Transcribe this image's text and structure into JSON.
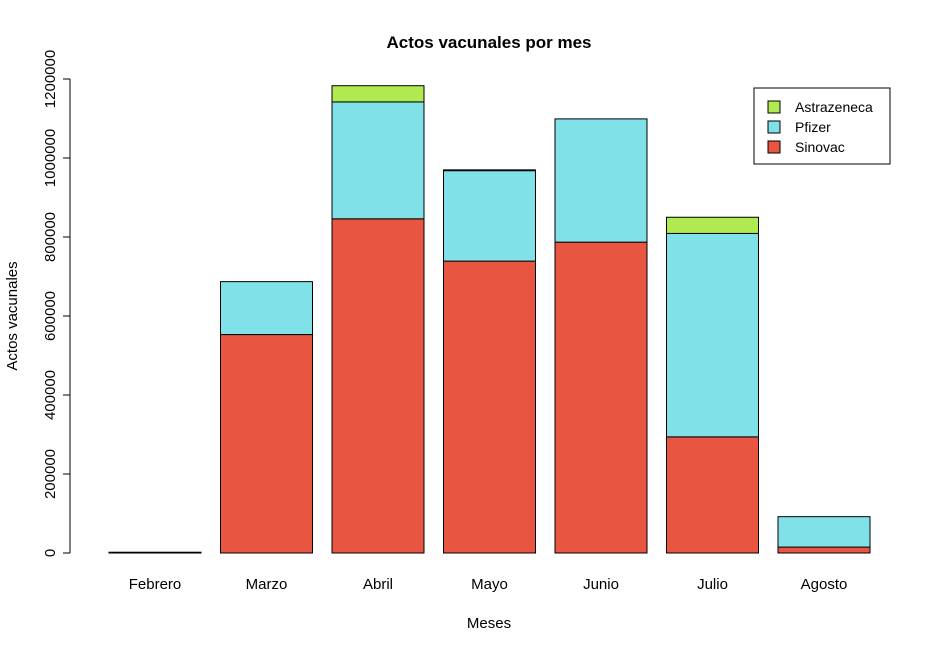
{
  "chart_data": {
    "type": "bar",
    "stacked": true,
    "title": "Actos vacunales por mes",
    "xlabel": "Meses",
    "ylabel": "Actos vacunales",
    "categories": [
      "Febrero",
      "Marzo",
      "Abril",
      "Mayo",
      "Junio",
      "Julio",
      "Agosto"
    ],
    "series": [
      {
        "name": "Sinovac",
        "color": "#E85540",
        "values": [
          2000,
          553000,
          846000,
          739000,
          787000,
          294000,
          15000
        ]
      },
      {
        "name": "Pfizer",
        "color": "#80E1E9",
        "values": [
          0,
          134000,
          296000,
          229000,
          312000,
          515000,
          77000
        ]
      },
      {
        "name": "Astrazeneca",
        "color": "#AEEA50",
        "values": [
          0,
          0,
          41000,
          2000,
          0,
          41000,
          0
        ]
      }
    ],
    "ylim": [
      0,
      1200000
    ],
    "yticks": [
      "0",
      "200000",
      "400000",
      "600000",
      "800000",
      "1000000",
      "1200000"
    ],
    "legend_position": "top-right",
    "legend_order": [
      "Astrazeneca",
      "Pfizer",
      "Sinovac"
    ],
    "grid": false
  }
}
